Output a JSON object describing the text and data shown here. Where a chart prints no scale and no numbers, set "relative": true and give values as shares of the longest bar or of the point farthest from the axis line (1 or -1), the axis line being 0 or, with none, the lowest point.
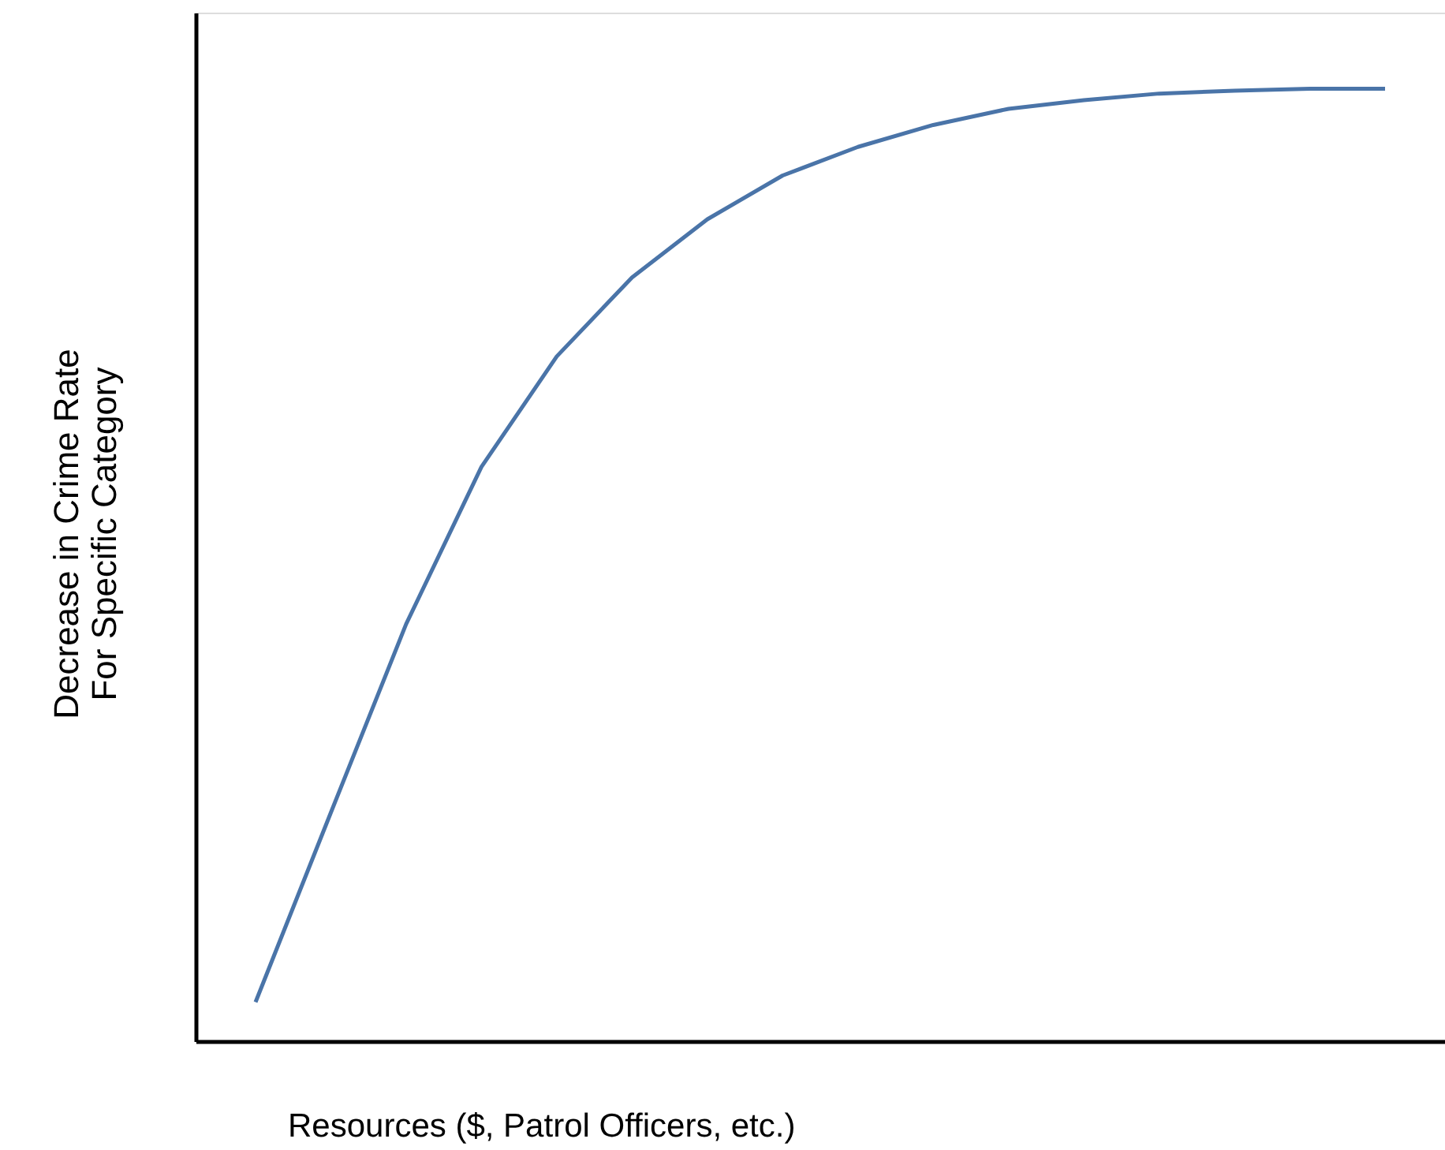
{
  "chart_data": {
    "type": "line",
    "relative": true,
    "xlabel": "Resources ($, Patrol Officers, etc.)",
    "ylabel": "Decrease in Crime Rate\nFor Specific Category",
    "categories": [
      null,
      null,
      null,
      null,
      null,
      null,
      null,
      null,
      null,
      null,
      null,
      null,
      null,
      null,
      null,
      null
    ],
    "series": [
      {
        "color": "#4a74a8",
        "values": [
          0.041,
          0.24,
          0.438,
          0.603,
          0.719,
          0.802,
          0.863,
          0.909,
          0.939,
          0.962,
          0.979,
          0.988,
          0.995,
          0.998,
          1.0,
          1.0
        ]
      }
    ],
    "grid": false,
    "marker": "none",
    "line_style": "solid",
    "tick_labels": false
  }
}
